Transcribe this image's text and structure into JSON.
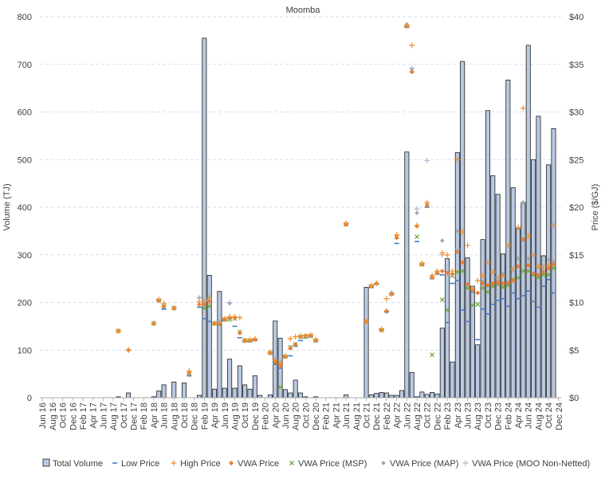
{
  "chart_data": {
    "type": "bar",
    "title": "Moomba",
    "ylabel": "Volume (TJ)",
    "y2label": "Price ($/GJ)",
    "ylim": [
      0,
      800
    ],
    "y2lim": [
      0,
      40
    ],
    "y_ticks": [
      0,
      100,
      200,
      300,
      400,
      500,
      600,
      700,
      800
    ],
    "y2_ticks": [
      "$0",
      "$5",
      "$10",
      "$15",
      "$20",
      "$25",
      "$30",
      "$35",
      "$40"
    ],
    "x_ticks": [
      "Jun 16",
      "Aug 16",
      "Oct 16",
      "Dec 16",
      "Feb 17",
      "Apr 17",
      "Jun 17",
      "Aug 17",
      "Oct 17",
      "Dec 17",
      "Feb 18",
      "Apr 18",
      "Jun 18",
      "Aug 18",
      "Oct 18",
      "Dec 18",
      "Feb 19",
      "Apr 19",
      "Jun 19",
      "Aug 19",
      "Oct 19",
      "Dec 19",
      "Feb 20",
      "Apr 20",
      "Jun 20",
      "Aug 20",
      "Oct 20",
      "Dec 20",
      "Feb 21",
      "Apr 21",
      "Jun 21",
      "Aug 21",
      "Oct 21",
      "Dec 21",
      "Feb 22",
      "Apr 22",
      "Jun 22",
      "Aug 22",
      "Oct 22",
      "Dec 22",
      "Feb 23",
      "Apr 23",
      "Jun 23",
      "Aug 23",
      "Oct 23",
      "Dec 23",
      "Feb 24",
      "Apr 24",
      "Jun 24",
      "Aug 24",
      "Oct 24",
      "Dec 24"
    ],
    "legend_position": "bottom",
    "grid": true,
    "colors": {
      "bar_fill": "#b9c9e2",
      "bar_stroke": "#1f1f1f",
      "low": "#4a78c4",
      "high": "#f28e2b",
      "vwa": "#ed7d31",
      "vwa_msp": "#70a83c",
      "vwa_map": "#a6a6a6",
      "vwa_moo": "#a9b8d6",
      "grid": "#c9d3ea"
    },
    "volume": [
      {
        "x": "Sep 17",
        "v": 2
      },
      {
        "x": "Nov 17",
        "v": 10
      },
      {
        "x": "Apr 18",
        "v": 2
      },
      {
        "x": "May 18",
        "v": 14
      },
      {
        "x": "Jun 18",
        "v": 27
      },
      {
        "x": "Aug 18",
        "v": 33
      },
      {
        "x": "Oct 18",
        "v": 31
      },
      {
        "x": "Jan 19",
        "v": 5
      },
      {
        "x": "Feb 19",
        "v": 755
      },
      {
        "x": "Mar 19",
        "v": 257
      },
      {
        "x": "Apr 19",
        "v": 18
      },
      {
        "x": "May 19",
        "v": 223
      },
      {
        "x": "Jun 19",
        "v": 20
      },
      {
        "x": "Jul 19",
        "v": 81
      },
      {
        "x": "Aug 19",
        "v": 20
      },
      {
        "x": "Sep 19",
        "v": 67
      },
      {
        "x": "Oct 19",
        "v": 27
      },
      {
        "x": "Nov 19",
        "v": 18
      },
      {
        "x": "Dec 19",
        "v": 46
      },
      {
        "x": "Jan 20",
        "v": 5
      },
      {
        "x": "Mar 20",
        "v": 6
      },
      {
        "x": "Apr 20",
        "v": 161
      },
      {
        "x": "May 20",
        "v": 125
      },
      {
        "x": "Jun 20",
        "v": 17
      },
      {
        "x": "Jul 20",
        "v": 10
      },
      {
        "x": "Aug 20",
        "v": 37
      },
      {
        "x": "Sep 20",
        "v": 10
      },
      {
        "x": "Oct 20",
        "v": 2
      },
      {
        "x": "Dec 20",
        "v": 2
      },
      {
        "x": "Jun 21",
        "v": 6
      },
      {
        "x": "Oct 21",
        "v": 232
      },
      {
        "x": "Nov 21",
        "v": 6
      },
      {
        "x": "Dec 21",
        "v": 9
      },
      {
        "x": "Jan 22",
        "v": 11
      },
      {
        "x": "Feb 22",
        "v": 10
      },
      {
        "x": "Mar 22",
        "v": 5
      },
      {
        "x": "Apr 22",
        "v": 5
      },
      {
        "x": "May 22",
        "v": 15
      },
      {
        "x": "Jun 22",
        "v": 516
      },
      {
        "x": "Jul 22",
        "v": 53
      },
      {
        "x": "Aug 22",
        "v": 2
      },
      {
        "x": "Sep 22",
        "v": 12
      },
      {
        "x": "Oct 22",
        "v": 7
      },
      {
        "x": "Nov 22",
        "v": 11
      },
      {
        "x": "Dec 22",
        "v": 8
      },
      {
        "x": "Jan 23",
        "v": 146
      },
      {
        "x": "Feb 23",
        "v": 292
      },
      {
        "x": "Mar 23",
        "v": 75
      },
      {
        "x": "Apr 23",
        "v": 515
      },
      {
        "x": "May 23",
        "v": 706
      },
      {
        "x": "Jun 23",
        "v": 294
      },
      {
        "x": "Jul 23",
        "v": 234
      },
      {
        "x": "Aug 23",
        "v": 111
      },
      {
        "x": "Sep 23",
        "v": 332
      },
      {
        "x": "Oct 23",
        "v": 603
      },
      {
        "x": "Nov 23",
        "v": 466
      },
      {
        "x": "Dec 23",
        "v": 427
      },
      {
        "x": "Jan 24",
        "v": 302
      },
      {
        "x": "Feb 24",
        "v": 667
      },
      {
        "x": "Mar 24",
        "v": 441
      },
      {
        "x": "Apr 24",
        "v": 355
      },
      {
        "x": "May 24",
        "v": 410
      },
      {
        "x": "Jun 24",
        "v": 740
      },
      {
        "x": "Jul 24",
        "v": 500
      },
      {
        "x": "Aug 24",
        "v": 591
      },
      {
        "x": "Sep 24",
        "v": 298
      },
      {
        "x": "Oct 24",
        "v": 489
      },
      {
        "x": "Nov 24",
        "v": 565
      }
    ],
    "prices": [
      {
        "x": "Sep 17",
        "low": 7,
        "high": 7,
        "vwa": 7,
        "msp": 7
      },
      {
        "x": "Nov 17",
        "low": 5,
        "high": 5,
        "vwa": 5,
        "map": 5,
        "moo": 5
      },
      {
        "x": "Apr 18",
        "low": 7.8,
        "high": 7.8,
        "vwa": 7.8,
        "msp": 7.8
      },
      {
        "x": "May 18",
        "low": 10.2,
        "high": 10.3,
        "vwa": 10.2,
        "msp": 10.2
      },
      {
        "x": "Jun 18",
        "low": 9.3,
        "high": 9.9,
        "vwa": 9.6,
        "msp": 9.6
      },
      {
        "x": "Aug 18",
        "low": 9.4,
        "high": 9.4,
        "vwa": 9.4,
        "msp": 9.4
      },
      {
        "x": "Nov 18",
        "low": 2.3,
        "high": 2.8,
        "vwa": 2.6,
        "msp": 2.6
      },
      {
        "x": "Jan 19",
        "low": 9.5,
        "high": 10.1,
        "vwa": 9.8,
        "map": 10.5,
        "moo": 10.5
      },
      {
        "x": "Feb 19",
        "low": 8.3,
        "high": 10.1,
        "vwa": 9.8,
        "msp": 9.4,
        "map": 9.9,
        "moo": 10.2
      },
      {
        "x": "Mar 19",
        "low": 8,
        "high": 10.5,
        "vwa": 10.1,
        "msp": 9.6,
        "moo": 10.3
      },
      {
        "x": "Apr 19",
        "low": 7.8,
        "high": 7.8,
        "vwa": 7.8,
        "msp": 7.8
      },
      {
        "x": "May 19",
        "low": 7.8,
        "high": 7.9,
        "vwa": 7.8,
        "msp": 7.7,
        "map": 7.8
      },
      {
        "x": "Jun 19",
        "low": 8.1,
        "high": 8.3,
        "vwa": 8.2,
        "msp": 8.2
      },
      {
        "x": "Jul 19",
        "low": 8.3,
        "high": 8.5,
        "vwa": 8.4,
        "msp": 8.2,
        "map": 9.9,
        "moo": 10
      },
      {
        "x": "Aug 19",
        "low": 7.5,
        "high": 8.5,
        "vwa": 8.4,
        "msp": 8.3
      },
      {
        "x": "Sep 19",
        "low": 6.3,
        "high": 8.4,
        "vwa": 6.8,
        "msp": 6.9
      },
      {
        "x": "Oct 19",
        "low": 5.9,
        "high": 6,
        "vwa": 6,
        "msp": 6
      },
      {
        "x": "Nov 19",
        "low": 5.9,
        "high": 6.1,
        "vwa": 6,
        "msp": 6
      },
      {
        "x": "Dec 19",
        "low": 6,
        "high": 6.2,
        "vwa": 6.1,
        "map": 6.1
      },
      {
        "x": "Mar 20",
        "low": 4.7,
        "high": 4.8,
        "vwa": 4.7,
        "msp": 4.7
      },
      {
        "x": "Apr 20",
        "low": 3.5,
        "high": 4,
        "vwa": 3.8,
        "msp": 3.7
      },
      {
        "x": "May 20",
        "low": 3.1,
        "high": 3.6,
        "vwa": 3.4,
        "msp": 1.1,
        "map": 3.6
      },
      {
        "x": "Jun 20",
        "low": 4.3,
        "high": 4.4,
        "vwa": 4.3,
        "msp": 4.3
      },
      {
        "x": "Jul 20",
        "low": 4.4,
        "high": 6.2,
        "vwa": 5.2,
        "msp": 5.3
      },
      {
        "x": "Aug 20",
        "low": 5.4,
        "high": 6.4,
        "vwa": 5.6,
        "msp": 5.6
      },
      {
        "x": "Sep 20",
        "low": 6,
        "high": 6.5,
        "vwa": 6.4,
        "msp": 6.4
      },
      {
        "x": "Oct 20",
        "low": 6.3,
        "high": 6.5,
        "vwa": 6.5,
        "msp": 6.4
      },
      {
        "x": "Nov 20",
        "low": 6.4,
        "high": 6.6,
        "vwa": 6.5,
        "msp": 6.5
      },
      {
        "x": "Dec 20",
        "low": 6,
        "high": 6.1,
        "vwa": 6,
        "msp": 6
      },
      {
        "x": "Jun 21",
        "low": 18.2,
        "high": 18.3,
        "vwa": 18.2,
        "msp": 18.2
      },
      {
        "x": "Oct 21",
        "low": 8,
        "high": 8,
        "vwa": 8,
        "map": 8
      },
      {
        "x": "Nov 21",
        "low": 11.6,
        "high": 11.8,
        "vwa": 11.7,
        "msp": 11.7
      },
      {
        "x": "Dec 21",
        "low": 11.9,
        "high": 12,
        "vwa": 12,
        "map": 12,
        "moo": 12
      },
      {
        "x": "Jan 22",
        "low": 7.1,
        "high": 7.2,
        "vwa": 7.1,
        "msp": 7.1
      },
      {
        "x": "Feb 22",
        "low": 9,
        "high": 10.4,
        "vwa": 9.1,
        "map": 9,
        "moo": 9.1
      },
      {
        "x": "Mar 22",
        "low": 10.8,
        "high": 10.9,
        "vwa": 10.9,
        "map": 11,
        "moo": 11
      },
      {
        "x": "Apr 22",
        "low": 16.2,
        "high": 17.1,
        "vwa": 16.8,
        "msp": 16.9
      },
      {
        "x": "Jun 22",
        "low": 38.9,
        "high": 39.1,
        "vwa": 39,
        "map": 39.2,
        "moo": 39
      },
      {
        "x": "Jul 22",
        "low": 34.2,
        "high": 37,
        "vwa": 34.2,
        "map": 34.5,
        "moo": 34.6
      },
      {
        "x": "Aug 22",
        "low": 16.4,
        "high": 18.1,
        "vwa": 18,
        "msp": 16.9,
        "map": 19.4,
        "moo": 19.8
      },
      {
        "x": "Sep 22",
        "low": 13.9,
        "high": 14.1,
        "vwa": 14,
        "msp": 14
      },
      {
        "x": "Oct 22",
        "low": 20,
        "high": 20.5,
        "vwa": 20.2,
        "map": 20.3,
        "moo": 24.9
      },
      {
        "x": "Nov 22",
        "low": 12.5,
        "high": 12.8,
        "vwa": 12.6,
        "msp": 4.5,
        "map": 12.8
      },
      {
        "x": "Dec 22",
        "low": 13,
        "high": 13.3,
        "vwa": 13.1,
        "msp": 13.1
      },
      {
        "x": "Jan 23",
        "low": 12.9,
        "high": 15.2,
        "vwa": 13.3,
        "msp": 10.3,
        "map": 16.5,
        "moo": 15
      },
      {
        "x": "Feb 23",
        "low": 7.9,
        "high": 15,
        "vwa": 13.1,
        "msp": 9.2,
        "moo": 13
      },
      {
        "x": "Mar 23",
        "low": 12,
        "high": 13.3,
        "vwa": 13,
        "msp": 12.8
      },
      {
        "x": "Apr 23",
        "low": 12.3,
        "high": 25,
        "vwa": 15.3,
        "msp": 13.2,
        "map": 17.5,
        "moo": 15.6
      },
      {
        "x": "May 23",
        "low": 9.2,
        "high": 17.4,
        "vwa": 14.2,
        "msp": 13.3,
        "map": 14.2
      },
      {
        "x": "Jun 23",
        "low": 8,
        "high": 16,
        "vwa": 11.9,
        "msp": 11.5
      },
      {
        "x": "Jul 23",
        "low": 11.1,
        "high": 11.5,
        "vwa": 11.3,
        "msp": 9.7
      },
      {
        "x": "Aug 23",
        "low": 6.1,
        "high": 12.3,
        "vwa": 11,
        "msp": 9.8
      },
      {
        "x": "Sep 23",
        "low": 9.3,
        "high": 12.8,
        "vwa": 12,
        "msp": 11.5,
        "map": 12.2
      },
      {
        "x": "Oct 23",
        "low": 8.8,
        "high": 14.2,
        "vwa": 11.8,
        "msp": 11.1
      },
      {
        "x": "Nov 23",
        "low": 9.8,
        "high": 13.2,
        "vwa": 12,
        "msp": 11.7
      },
      {
        "x": "Dec 23",
        "low": 10.2,
        "high": 12.6,
        "vwa": 12.1,
        "msp": 11.9
      },
      {
        "x": "Jan 24",
        "low": 10.4,
        "high": 12.8,
        "vwa": 12,
        "msp": 11.6,
        "map": 13
      },
      {
        "x": "Feb 24",
        "low": 9.6,
        "high": 16,
        "vwa": 12.1,
        "msp": 11.8
      },
      {
        "x": "Mar 24",
        "low": 11,
        "high": 13.5,
        "vwa": 12.3,
        "msp": 12.4
      },
      {
        "x": "Apr 24",
        "low": 10.4,
        "high": 17.9,
        "vwa": 13.8,
        "msp": 12.6,
        "map": 14.6
      },
      {
        "x": "May 24",
        "low": 10.7,
        "high": 30.4,
        "vwa": 16.6,
        "msp": 13.3,
        "map": 20.5
      },
      {
        "x": "Jun 24",
        "low": 11.2,
        "high": 17,
        "vwa": 13.9,
        "msp": 13.3,
        "map": 14.6
      },
      {
        "x": "Jul 24",
        "low": 10.1,
        "high": 15,
        "vwa": 13,
        "msp": 12.9
      },
      {
        "x": "Aug 24",
        "low": 9.5,
        "high": 13.8,
        "vwa": 12.9,
        "msp": 12.6,
        "map": 13.7
      },
      {
        "x": "Sep 24",
        "low": 11.7,
        "high": 13.7,
        "vwa": 13.2,
        "msp": 12.9
      },
      {
        "x": "Oct 24",
        "low": 12.4,
        "high": 13.9,
        "vwa": 13.6,
        "msp": 12.9,
        "map": 14.5
      },
      {
        "x": "Nov 24",
        "low": 11,
        "high": 18.1,
        "vwa": 14,
        "msp": 13.6,
        "map": 14.3
      }
    ],
    "legend": [
      {
        "key": "volume",
        "label": "Total Volume"
      },
      {
        "key": "low",
        "label": "Low Price"
      },
      {
        "key": "high",
        "label": "High Price"
      },
      {
        "key": "vwa",
        "label": "VWA Price"
      },
      {
        "key": "msp",
        "label": "VWA Price (MSP)"
      },
      {
        "key": "map",
        "label": "VWA Price (MAP)"
      },
      {
        "key": "moo",
        "label": "VWA Price (MOO Non-Netted)"
      }
    ]
  }
}
